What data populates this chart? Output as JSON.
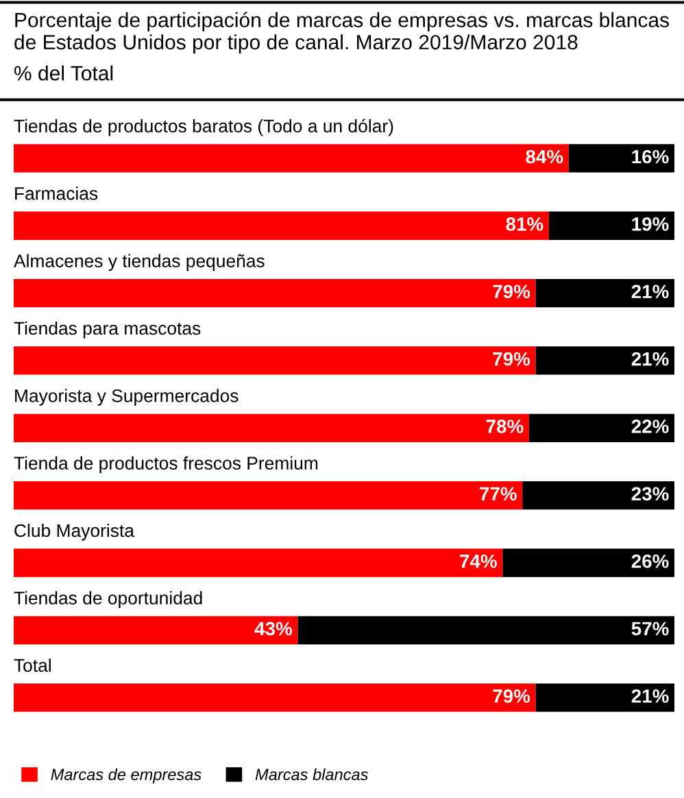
{
  "chart_data": {
    "type": "bar",
    "orientation": "horizontal",
    "stacked": true,
    "title": "Porcentaje de participación de marcas de empresas vs. marcas blancas de Estados Unidos por tipo de canal. Marzo 2019/Marzo 2018",
    "subtitle": "% del Total",
    "categories": [
      "Tiendas de productos baratos (Todo a un dólar)",
      "Farmacias",
      "Almacenes y tiendas pequeñas",
      "Tiendas para mascotas",
      "Mayorista y Supermercados",
      "Tienda de productos frescos Premium",
      "Club Mayorista",
      "Tiendas de oportunidad",
      "Total"
    ],
    "series": [
      {
        "name": "Marcas de empresas",
        "color": "#ff0000",
        "values": [
          84,
          81,
          79,
          79,
          78,
          77,
          74,
          43,
          79
        ],
        "value_labels": [
          "84%",
          "81%",
          "79%",
          "79%",
          "78%",
          "77%",
          "74%",
          "43%",
          "79%"
        ]
      },
      {
        "name": "Marcas blancas",
        "color": "#000000",
        "values": [
          16,
          19,
          21,
          21,
          22,
          23,
          26,
          57,
          21
        ],
        "value_labels": [
          "16%",
          "19%",
          "21%",
          "21%",
          "22%",
          "23%",
          "26%",
          "57%",
          "21%"
        ]
      }
    ],
    "xlim": [
      0,
      100
    ],
    "legend": "bottom left"
  }
}
